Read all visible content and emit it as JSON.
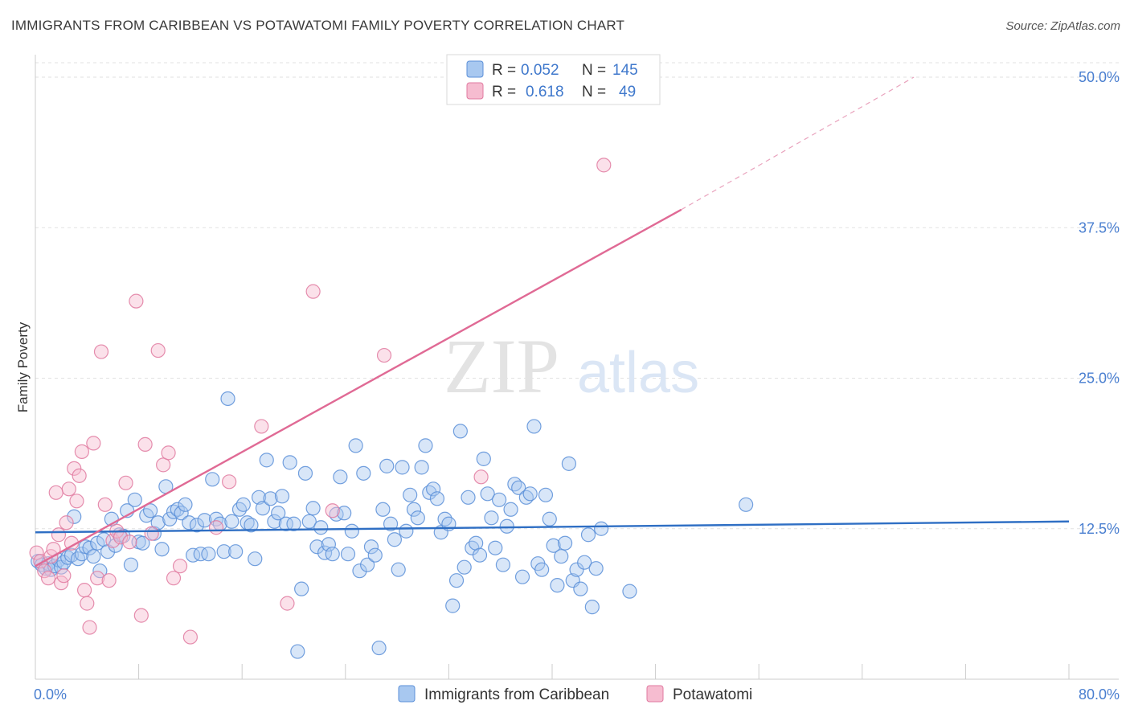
{
  "header": {
    "title": "IMMIGRANTS FROM CARIBBEAN VS POTAWATOMI FAMILY POVERTY CORRELATION CHART",
    "source": "Source: ZipAtlas.com"
  },
  "watermark": {
    "zip": "ZIP",
    "atlas": "atlas"
  },
  "legend": {
    "r_label": "R =",
    "n_label": "N =",
    "rows": [
      {
        "name": "Immigrants from Caribbean",
        "r": "0.052",
        "n": "145",
        "fill": "#a8c8f0",
        "stroke": "#5b8fd8"
      },
      {
        "name": "Potawatomi",
        "r": "0.618",
        "n": "49",
        "fill": "#f6bcd0",
        "stroke": "#e07aa0"
      }
    ]
  },
  "chart_data": {
    "type": "scatter",
    "title": "IMMIGRANTS FROM CARIBBEAN VS POTAWATOMI FAMILY POVERTY CORRELATION CHART",
    "xlabel": "",
    "ylabel": "Family Poverty",
    "xlim": [
      0,
      80
    ],
    "ylim": [
      0,
      50
    ],
    "x_tick_labels": [
      "0.0%",
      "80.0%"
    ],
    "y_ticks": [
      12.5,
      25.0,
      37.5,
      50.0
    ],
    "y_tick_labels": [
      "12.5%",
      "25.0%",
      "37.5%",
      "50.0%"
    ],
    "series": [
      {
        "name": "Immigrants from Caribbean",
        "color": "#5b8fd8",
        "fill": "#a8c8f0",
        "trend": {
          "x0": 0,
          "y0": 12.2,
          "x1": 80,
          "y1": 13.1
        },
        "points": [
          [
            0.2,
            9.8
          ],
          [
            0.5,
            9.5
          ],
          [
            0.8,
            9.2
          ],
          [
            1.0,
            9.6
          ],
          [
            1.2,
            9.1
          ],
          [
            1.5,
            9.4
          ],
          [
            1.8,
            9.9
          ],
          [
            2.0,
            9.3
          ],
          [
            2.2,
            9.7
          ],
          [
            2.5,
            10.1
          ],
          [
            2.8,
            10.3
          ],
          [
            3.0,
            13.5
          ],
          [
            3.3,
            10.0
          ],
          [
            3.6,
            10.4
          ],
          [
            3.9,
            11.0
          ],
          [
            4.2,
            10.9
          ],
          [
            4.5,
            10.2
          ],
          [
            4.8,
            11.3
          ],
          [
            5.0,
            9.0
          ],
          [
            5.3,
            11.6
          ],
          [
            5.6,
            10.6
          ],
          [
            5.9,
            13.3
          ],
          [
            6.2,
            11.1
          ],
          [
            6.5,
            12.0
          ],
          [
            6.8,
            11.9
          ],
          [
            7.1,
            14.0
          ],
          [
            7.4,
            9.5
          ],
          [
            7.7,
            14.9
          ],
          [
            8.0,
            11.4
          ],
          [
            8.3,
            11.3
          ],
          [
            8.6,
            13.6
          ],
          [
            8.9,
            14.0
          ],
          [
            9.2,
            12.1
          ],
          [
            9.5,
            13.0
          ],
          [
            9.8,
            10.8
          ],
          [
            10.1,
            16.0
          ],
          [
            10.4,
            13.3
          ],
          [
            10.7,
            13.9
          ],
          [
            11.0,
            14.1
          ],
          [
            11.3,
            13.8
          ],
          [
            11.6,
            14.5
          ],
          [
            11.9,
            13.0
          ],
          [
            12.2,
            10.3
          ],
          [
            12.5,
            12.8
          ],
          [
            12.8,
            10.4
          ],
          [
            13.1,
            13.2
          ],
          [
            13.4,
            10.4
          ],
          [
            13.7,
            16.6
          ],
          [
            14.0,
            13.3
          ],
          [
            14.3,
            12.9
          ],
          [
            14.6,
            10.6
          ],
          [
            14.9,
            23.3
          ],
          [
            15.2,
            13.1
          ],
          [
            15.5,
            10.6
          ],
          [
            15.8,
            14.1
          ],
          [
            16.1,
            14.5
          ],
          [
            16.4,
            13.0
          ],
          [
            16.7,
            12.8
          ],
          [
            17.0,
            10.0
          ],
          [
            17.3,
            15.1
          ],
          [
            17.6,
            14.2
          ],
          [
            17.9,
            18.2
          ],
          [
            18.2,
            15.0
          ],
          [
            18.5,
            13.1
          ],
          [
            18.8,
            13.8
          ],
          [
            19.1,
            15.2
          ],
          [
            19.4,
            12.9
          ],
          [
            19.7,
            18.0
          ],
          [
            20.0,
            12.9
          ],
          [
            20.3,
            2.3
          ],
          [
            20.6,
            7.5
          ],
          [
            20.9,
            17.1
          ],
          [
            21.2,
            13.1
          ],
          [
            21.5,
            14.2
          ],
          [
            21.8,
            11.0
          ],
          [
            22.1,
            12.6
          ],
          [
            22.4,
            10.5
          ],
          [
            22.7,
            11.2
          ],
          [
            23.0,
            10.4
          ],
          [
            23.3,
            13.7
          ],
          [
            23.6,
            16.8
          ],
          [
            23.9,
            13.8
          ],
          [
            24.2,
            10.4
          ],
          [
            24.5,
            12.3
          ],
          [
            24.8,
            19.4
          ],
          [
            25.1,
            9.0
          ],
          [
            25.4,
            17.1
          ],
          [
            25.7,
            9.5
          ],
          [
            26.0,
            11.0
          ],
          [
            26.3,
            10.3
          ],
          [
            26.6,
            2.6
          ],
          [
            26.9,
            14.1
          ],
          [
            27.2,
            17.7
          ],
          [
            27.5,
            12.9
          ],
          [
            27.8,
            11.6
          ],
          [
            28.1,
            9.1
          ],
          [
            28.4,
            17.6
          ],
          [
            28.7,
            12.3
          ],
          [
            29.0,
            15.3
          ],
          [
            29.3,
            14.1
          ],
          [
            29.6,
            13.4
          ],
          [
            29.9,
            17.6
          ],
          [
            30.2,
            19.4
          ],
          [
            30.5,
            15.5
          ],
          [
            30.8,
            15.8
          ],
          [
            31.1,
            15.0
          ],
          [
            31.4,
            12.2
          ],
          [
            31.7,
            13.3
          ],
          [
            32.0,
            12.9
          ],
          [
            32.3,
            6.1
          ],
          [
            32.6,
            8.2
          ],
          [
            32.9,
            20.6
          ],
          [
            33.2,
            9.3
          ],
          [
            33.5,
            15.1
          ],
          [
            33.8,
            10.9
          ],
          [
            34.1,
            11.3
          ],
          [
            34.4,
            10.3
          ],
          [
            34.7,
            18.3
          ],
          [
            35.0,
            15.4
          ],
          [
            35.3,
            13.4
          ],
          [
            35.6,
            10.9
          ],
          [
            35.9,
            14.9
          ],
          [
            36.2,
            9.5
          ],
          [
            36.5,
            12.7
          ],
          [
            36.8,
            14.1
          ],
          [
            37.1,
            16.2
          ],
          [
            37.4,
            15.9
          ],
          [
            37.7,
            8.5
          ],
          [
            38.0,
            15.1
          ],
          [
            38.3,
            15.4
          ],
          [
            38.6,
            21.0
          ],
          [
            38.9,
            9.6
          ],
          [
            39.2,
            9.1
          ],
          [
            39.5,
            15.3
          ],
          [
            39.8,
            13.3
          ],
          [
            40.1,
            11.1
          ],
          [
            40.4,
            7.8
          ],
          [
            40.7,
            10.2
          ],
          [
            41.0,
            11.3
          ],
          [
            41.3,
            17.9
          ],
          [
            41.6,
            8.2
          ],
          [
            41.9,
            9.1
          ],
          [
            42.2,
            7.5
          ],
          [
            42.5,
            9.7
          ],
          [
            42.8,
            12.0
          ],
          [
            43.1,
            6.0
          ],
          [
            43.4,
            9.2
          ],
          [
            43.8,
            12.5
          ],
          [
            46.0,
            7.3
          ],
          [
            55.0,
            14.5
          ]
        ]
      },
      {
        "name": "Potawatomi",
        "color": "#e07aa0",
        "fill": "#f6bcd0",
        "trend": {
          "x0": 0,
          "y0": 9.4,
          "x1": 50,
          "y1": 39.0
        },
        "trend_ext": {
          "x0": 50,
          "y0": 39.0,
          "x1": 68,
          "y1": 50.0
        },
        "points": [
          [
            0.1,
            10.5
          ],
          [
            0.4,
            9.8
          ],
          [
            0.7,
            9.0
          ],
          [
            1.0,
            8.4
          ],
          [
            1.2,
            10.2
          ],
          [
            1.4,
            10.8
          ],
          [
            1.6,
            15.5
          ],
          [
            1.8,
            12.0
          ],
          [
            2.0,
            8.0
          ],
          [
            2.2,
            8.6
          ],
          [
            2.4,
            13.0
          ],
          [
            2.6,
            15.8
          ],
          [
            2.8,
            11.3
          ],
          [
            3.0,
            17.5
          ],
          [
            3.2,
            14.8
          ],
          [
            3.4,
            16.9
          ],
          [
            3.6,
            18.9
          ],
          [
            3.8,
            7.4
          ],
          [
            4.0,
            6.3
          ],
          [
            4.2,
            4.3
          ],
          [
            4.5,
            19.6
          ],
          [
            4.8,
            8.4
          ],
          [
            5.1,
            27.2
          ],
          [
            5.4,
            14.5
          ],
          [
            5.7,
            8.2
          ],
          [
            6.0,
            11.5
          ],
          [
            6.3,
            12.3
          ],
          [
            6.6,
            11.8
          ],
          [
            7.0,
            16.3
          ],
          [
            7.3,
            11.4
          ],
          [
            7.8,
            31.4
          ],
          [
            8.2,
            5.3
          ],
          [
            8.5,
            19.5
          ],
          [
            9.0,
            12.1
          ],
          [
            9.5,
            27.3
          ],
          [
            9.9,
            17.8
          ],
          [
            10.3,
            18.8
          ],
          [
            10.7,
            8.4
          ],
          [
            11.2,
            9.4
          ],
          [
            12.0,
            3.5
          ],
          [
            14.0,
            12.6
          ],
          [
            15.0,
            16.4
          ],
          [
            17.5,
            21.0
          ],
          [
            19.5,
            6.3
          ],
          [
            21.5,
            32.2
          ],
          [
            23.0,
            14.0
          ],
          [
            27.0,
            26.9
          ],
          [
            34.5,
            16.8
          ],
          [
            44.0,
            42.7
          ]
        ]
      }
    ]
  },
  "bottom_legend": [
    {
      "name": "Immigrants from Caribbean"
    },
    {
      "name": "Potawatomi"
    }
  ]
}
